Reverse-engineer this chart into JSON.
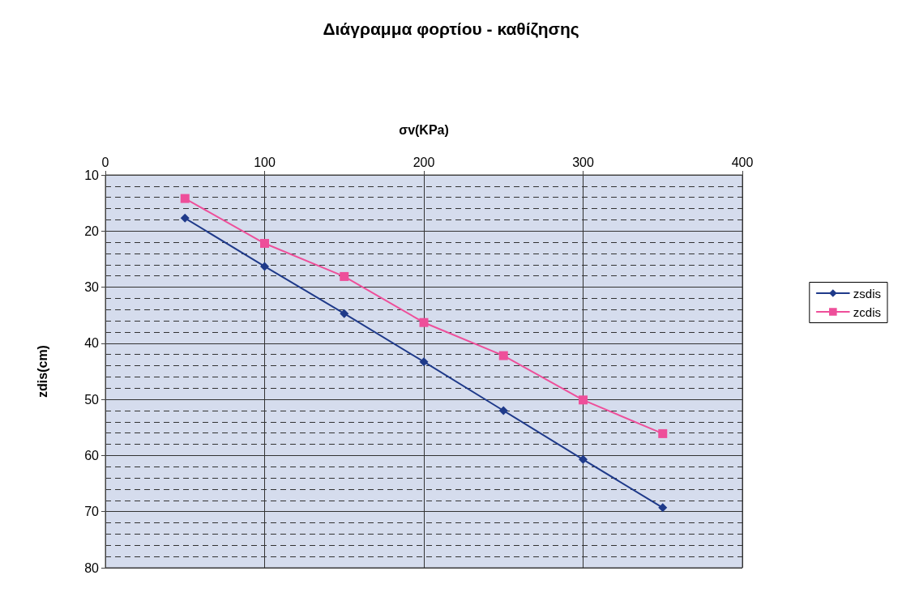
{
  "chart_data": {
    "type": "line",
    "title": "Διάγραμμα φορτίου - καθίζησης",
    "xlabel": "σv(KPa)",
    "ylabel": "zdis(cm)",
    "x": [
      50,
      100,
      150,
      200,
      250,
      300,
      350
    ],
    "series": [
      {
        "name": "zsdis",
        "color": "#1f3a8a",
        "marker": "diamond",
        "values": [
          17.7,
          26.3,
          34.7,
          43.3,
          52,
          60.7,
          69.3
        ]
      },
      {
        "name": "zcdis",
        "color": "#ee4f9a",
        "marker": "square",
        "values": [
          14.2,
          22.2,
          28.1,
          36.3,
          42.2,
          50.1,
          56.1
        ]
      }
    ],
    "xlim": [
      0,
      400
    ],
    "xticks": [
      0,
      100,
      200,
      300,
      400
    ],
    "ylim": [
      80,
      10
    ],
    "yticks": [
      10,
      20,
      30,
      40,
      50,
      60,
      70,
      80
    ],
    "grid": true,
    "legend": "right",
    "line_style": "solid"
  }
}
